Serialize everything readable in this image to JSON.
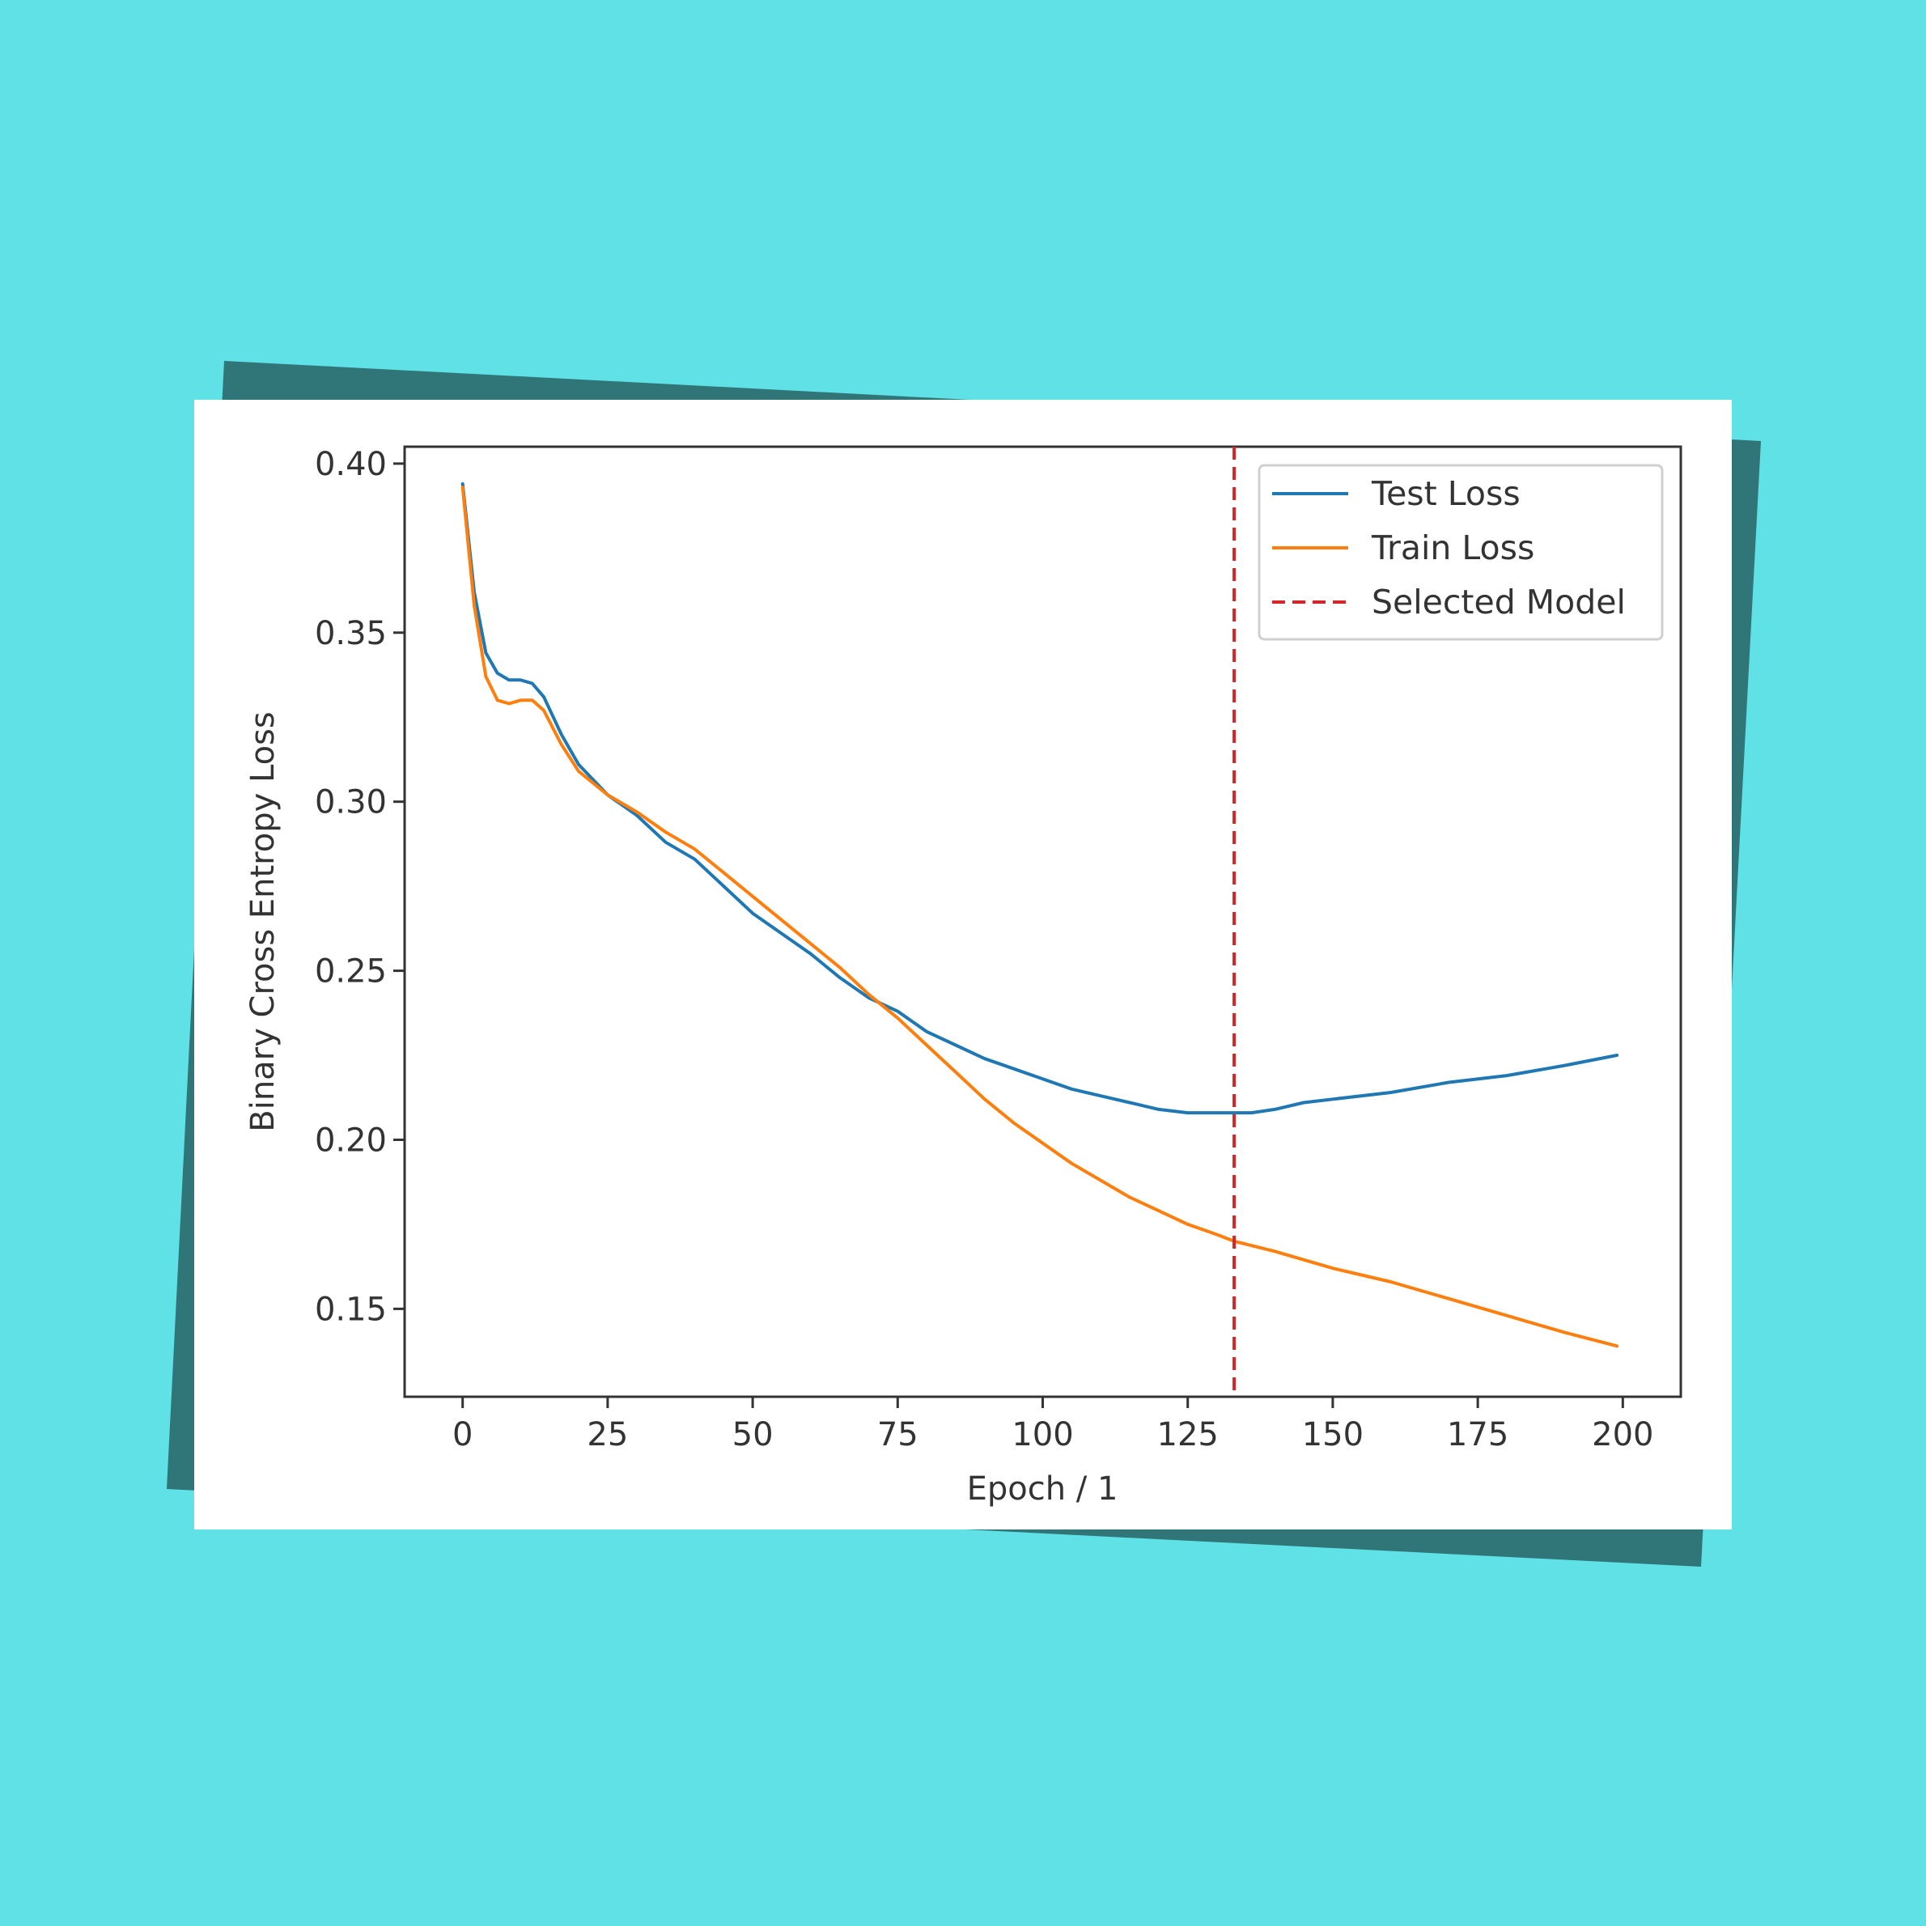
{
  "chart_data": {
    "type": "line",
    "title": "",
    "xlabel": "Epoch / 1",
    "ylabel": "Binary Cross Entropy Loss",
    "xlim": [
      -10,
      210
    ],
    "ylim": [
      0.124,
      0.405
    ],
    "xticks": [
      0,
      25,
      50,
      75,
      100,
      125,
      150,
      175,
      200
    ],
    "yticks": [
      0.15,
      0.2,
      0.25,
      0.3,
      0.35,
      0.4
    ],
    "xtick_labels": [
      "0",
      "25",
      "50",
      "75",
      "100",
      "125",
      "150",
      "175",
      "200"
    ],
    "ytick_labels": [
      "0.15",
      "0.20",
      "0.25",
      "0.30",
      "0.35",
      "0.40"
    ],
    "grid": false,
    "legend_position": "top-right",
    "series": [
      {
        "name": "Test Loss",
        "color": "#1f77b4",
        "style": "solid",
        "x": [
          0,
          2,
          4,
          6,
          8,
          10,
          12,
          14,
          17,
          20,
          25,
          30,
          35,
          40,
          45,
          50,
          55,
          60,
          65,
          70,
          75,
          80,
          85,
          90,
          95,
          100,
          105,
          110,
          115,
          120,
          125,
          130,
          133,
          136,
          140,
          145,
          150,
          160,
          170,
          180,
          190,
          199
        ],
        "y": [
          0.394,
          0.362,
          0.344,
          0.338,
          0.336,
          0.336,
          0.335,
          0.331,
          0.32,
          0.311,
          0.302,
          0.296,
          0.288,
          0.283,
          0.275,
          0.267,
          0.261,
          0.255,
          0.248,
          0.242,
          0.238,
          0.232,
          0.228,
          0.224,
          0.221,
          0.218,
          0.215,
          0.213,
          0.211,
          0.209,
          0.208,
          0.208,
          0.208,
          0.208,
          0.209,
          0.211,
          0.212,
          0.214,
          0.217,
          0.219,
          0.222,
          0.225
        ]
      },
      {
        "name": "Train Loss",
        "color": "#ff7f0e",
        "style": "solid",
        "x": [
          0,
          2,
          4,
          6,
          8,
          10,
          12,
          14,
          17,
          20,
          25,
          30,
          35,
          40,
          45,
          50,
          55,
          60,
          65,
          70,
          75,
          80,
          85,
          90,
          95,
          100,
          105,
          110,
          115,
          120,
          125,
          130,
          133,
          140,
          150,
          160,
          170,
          180,
          190,
          199
        ],
        "y": [
          0.393,
          0.358,
          0.337,
          0.33,
          0.329,
          0.33,
          0.33,
          0.327,
          0.317,
          0.309,
          0.302,
          0.297,
          0.291,
          0.286,
          0.279,
          0.272,
          0.265,
          0.258,
          0.251,
          0.243,
          0.236,
          0.228,
          0.22,
          0.212,
          0.205,
          0.199,
          0.193,
          0.188,
          0.183,
          0.179,
          0.175,
          0.172,
          0.17,
          0.167,
          0.162,
          0.158,
          0.153,
          0.148,
          0.143,
          0.139
        ]
      }
    ],
    "vlines": [
      {
        "name": "Selected Model",
        "x": 133,
        "color": "#d62728",
        "style": "dashed"
      }
    ]
  }
}
